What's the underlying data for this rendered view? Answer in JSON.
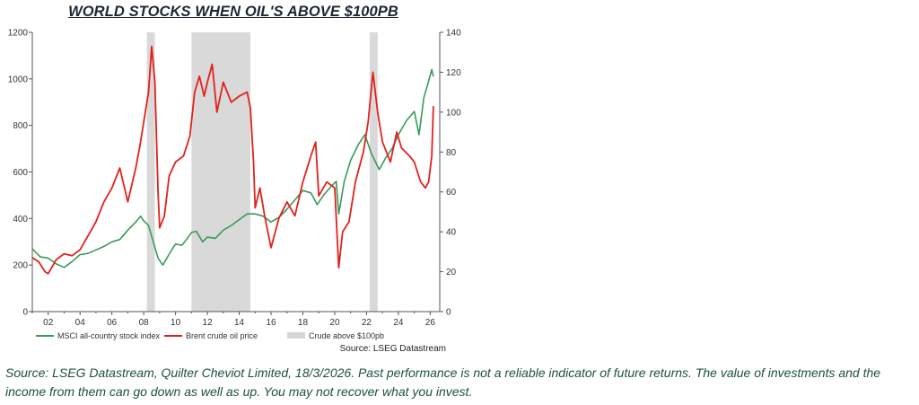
{
  "chart_data": {
    "type": "line",
    "title": "WORLD STOCKS WHEN OIL'S ABOVE $100PB",
    "source_note": "Source: LSEG Datastream",
    "x_range": [
      2001.0,
      2026.6
    ],
    "x_ticks": [
      "02",
      "04",
      "06",
      "08",
      "10",
      "12",
      "14",
      "16",
      "18",
      "20",
      "22",
      "24",
      "26"
    ],
    "x_tick_years": [
      2002,
      2004,
      2006,
      2008,
      2010,
      2012,
      2014,
      2016,
      2018,
      2020,
      2022,
      2024,
      2026
    ],
    "y_left": {
      "range": [
        0,
        1200
      ],
      "ticks": [
        "0",
        "200",
        "400",
        "600",
        "800",
        "1000",
        "1200"
      ],
      "tick_values": [
        0,
        200,
        400,
        600,
        800,
        1000,
        1200
      ]
    },
    "y_right": {
      "range": [
        0,
        140
      ],
      "ticks": [
        "0",
        "20",
        "40",
        "60",
        "80",
        "100",
        "120",
        "140"
      ],
      "tick_values": [
        0,
        20,
        40,
        60,
        80,
        100,
        120,
        140
      ]
    },
    "shaded_periods": [
      [
        2008.2,
        2008.7
      ],
      [
        2011.0,
        2014.7
      ],
      [
        2022.2,
        2022.7
      ]
    ],
    "series": [
      {
        "name": "MSCI all-country stock index",
        "axis": "left",
        "color": "#3a9a5b",
        "points": [
          [
            2001.0,
            270
          ],
          [
            2001.5,
            235
          ],
          [
            2002.0,
            230
          ],
          [
            2002.5,
            205
          ],
          [
            2003.0,
            190
          ],
          [
            2003.5,
            215
          ],
          [
            2004.0,
            245
          ],
          [
            2004.5,
            250
          ],
          [
            2005.0,
            265
          ],
          [
            2005.5,
            280
          ],
          [
            2006.0,
            300
          ],
          [
            2006.5,
            310
          ],
          [
            2007.0,
            350
          ],
          [
            2007.5,
            385
          ],
          [
            2007.8,
            410
          ],
          [
            2008.0,
            390
          ],
          [
            2008.3,
            370
          ],
          [
            2008.6,
            300
          ],
          [
            2008.9,
            230
          ],
          [
            2009.2,
            200
          ],
          [
            2009.5,
            235
          ],
          [
            2009.8,
            270
          ],
          [
            2010.0,
            290
          ],
          [
            2010.4,
            285
          ],
          [
            2010.8,
            320
          ],
          [
            2011.0,
            340
          ],
          [
            2011.3,
            345
          ],
          [
            2011.7,
            300
          ],
          [
            2012.0,
            320
          ],
          [
            2012.5,
            315
          ],
          [
            2013.0,
            350
          ],
          [
            2013.5,
            370
          ],
          [
            2014.0,
            395
          ],
          [
            2014.5,
            420
          ],
          [
            2015.0,
            420
          ],
          [
            2015.5,
            410
          ],
          [
            2016.0,
            385
          ],
          [
            2016.5,
            405
          ],
          [
            2017.0,
            440
          ],
          [
            2017.5,
            480
          ],
          [
            2018.0,
            520
          ],
          [
            2018.5,
            510
          ],
          [
            2018.9,
            460
          ],
          [
            2019.3,
            500
          ],
          [
            2019.8,
            540
          ],
          [
            2020.1,
            560
          ],
          [
            2020.25,
            420
          ],
          [
            2020.6,
            560
          ],
          [
            2021.0,
            650
          ],
          [
            2021.5,
            720
          ],
          [
            2021.9,
            760
          ],
          [
            2022.3,
            680
          ],
          [
            2022.8,
            610
          ],
          [
            2023.2,
            660
          ],
          [
            2023.6,
            700
          ],
          [
            2024.0,
            760
          ],
          [
            2024.5,
            820
          ],
          [
            2025.0,
            860
          ],
          [
            2025.3,
            760
          ],
          [
            2025.6,
            920
          ],
          [
            2025.9,
            990
          ],
          [
            2026.1,
            1040
          ],
          [
            2026.2,
            1010
          ]
        ]
      },
      {
        "name": "Brent crude oil price",
        "axis": "right",
        "color": "#e3211c",
        "points": [
          [
            2001.0,
            27
          ],
          [
            2001.4,
            25
          ],
          [
            2001.8,
            20
          ],
          [
            2002.0,
            19
          ],
          [
            2002.5,
            26
          ],
          [
            2003.0,
            29
          ],
          [
            2003.5,
            28
          ],
          [
            2004.0,
            31
          ],
          [
            2004.5,
            38
          ],
          [
            2005.0,
            45
          ],
          [
            2005.5,
            55
          ],
          [
            2006.0,
            62
          ],
          [
            2006.5,
            72
          ],
          [
            2007.0,
            55
          ],
          [
            2007.5,
            72
          ],
          [
            2007.8,
            85
          ],
          [
            2008.0,
            95
          ],
          [
            2008.3,
            110
          ],
          [
            2008.5,
            133
          ],
          [
            2008.7,
            115
          ],
          [
            2008.9,
            60
          ],
          [
            2009.0,
            42
          ],
          [
            2009.3,
            48
          ],
          [
            2009.6,
            68
          ],
          [
            2010.0,
            75
          ],
          [
            2010.5,
            78
          ],
          [
            2010.9,
            88
          ],
          [
            2011.2,
            110
          ],
          [
            2011.5,
            118
          ],
          [
            2011.8,
            108
          ],
          [
            2012.0,
            115
          ],
          [
            2012.3,
            124
          ],
          [
            2012.6,
            100
          ],
          [
            2013.0,
            115
          ],
          [
            2013.5,
            105
          ],
          [
            2014.0,
            108
          ],
          [
            2014.5,
            110
          ],
          [
            2014.7,
            102
          ],
          [
            2014.9,
            75
          ],
          [
            2015.0,
            52
          ],
          [
            2015.3,
            62
          ],
          [
            2015.6,
            48
          ],
          [
            2016.0,
            32
          ],
          [
            2016.5,
            47
          ],
          [
            2017.0,
            55
          ],
          [
            2017.5,
            48
          ],
          [
            2018.0,
            65
          ],
          [
            2018.5,
            78
          ],
          [
            2018.8,
            85
          ],
          [
            2019.0,
            58
          ],
          [
            2019.5,
            65
          ],
          [
            2020.0,
            62
          ],
          [
            2020.25,
            22
          ],
          [
            2020.5,
            40
          ],
          [
            2020.9,
            45
          ],
          [
            2021.3,
            65
          ],
          [
            2021.8,
            80
          ],
          [
            2022.1,
            95
          ],
          [
            2022.4,
            120
          ],
          [
            2022.7,
            100
          ],
          [
            2023.0,
            85
          ],
          [
            2023.5,
            75
          ],
          [
            2023.9,
            90
          ],
          [
            2024.2,
            82
          ],
          [
            2024.7,
            78
          ],
          [
            2025.0,
            75
          ],
          [
            2025.4,
            65
          ],
          [
            2025.7,
            62
          ],
          [
            2025.9,
            65
          ],
          [
            2026.1,
            78
          ],
          [
            2026.2,
            103
          ]
        ]
      }
    ],
    "legend": [
      {
        "label": "MSCI all-country stock index",
        "color": "#3a9a5b",
        "kind": "line"
      },
      {
        "label": "Brent crude oil price",
        "color": "#e3211c",
        "kind": "line"
      },
      {
        "label": "Crude above $100pb",
        "color": "#d6d6d6",
        "kind": "band"
      }
    ],
    "legend_placement": "bottom",
    "grid": false
  },
  "caption": "Source: LSEG Datastream, Quilter Cheviot Limited, 18/3/2026. Past performance is not a reliable indicator of future returns. The value of investments and the income from them can go down as well as up. You may not recover what you invest."
}
